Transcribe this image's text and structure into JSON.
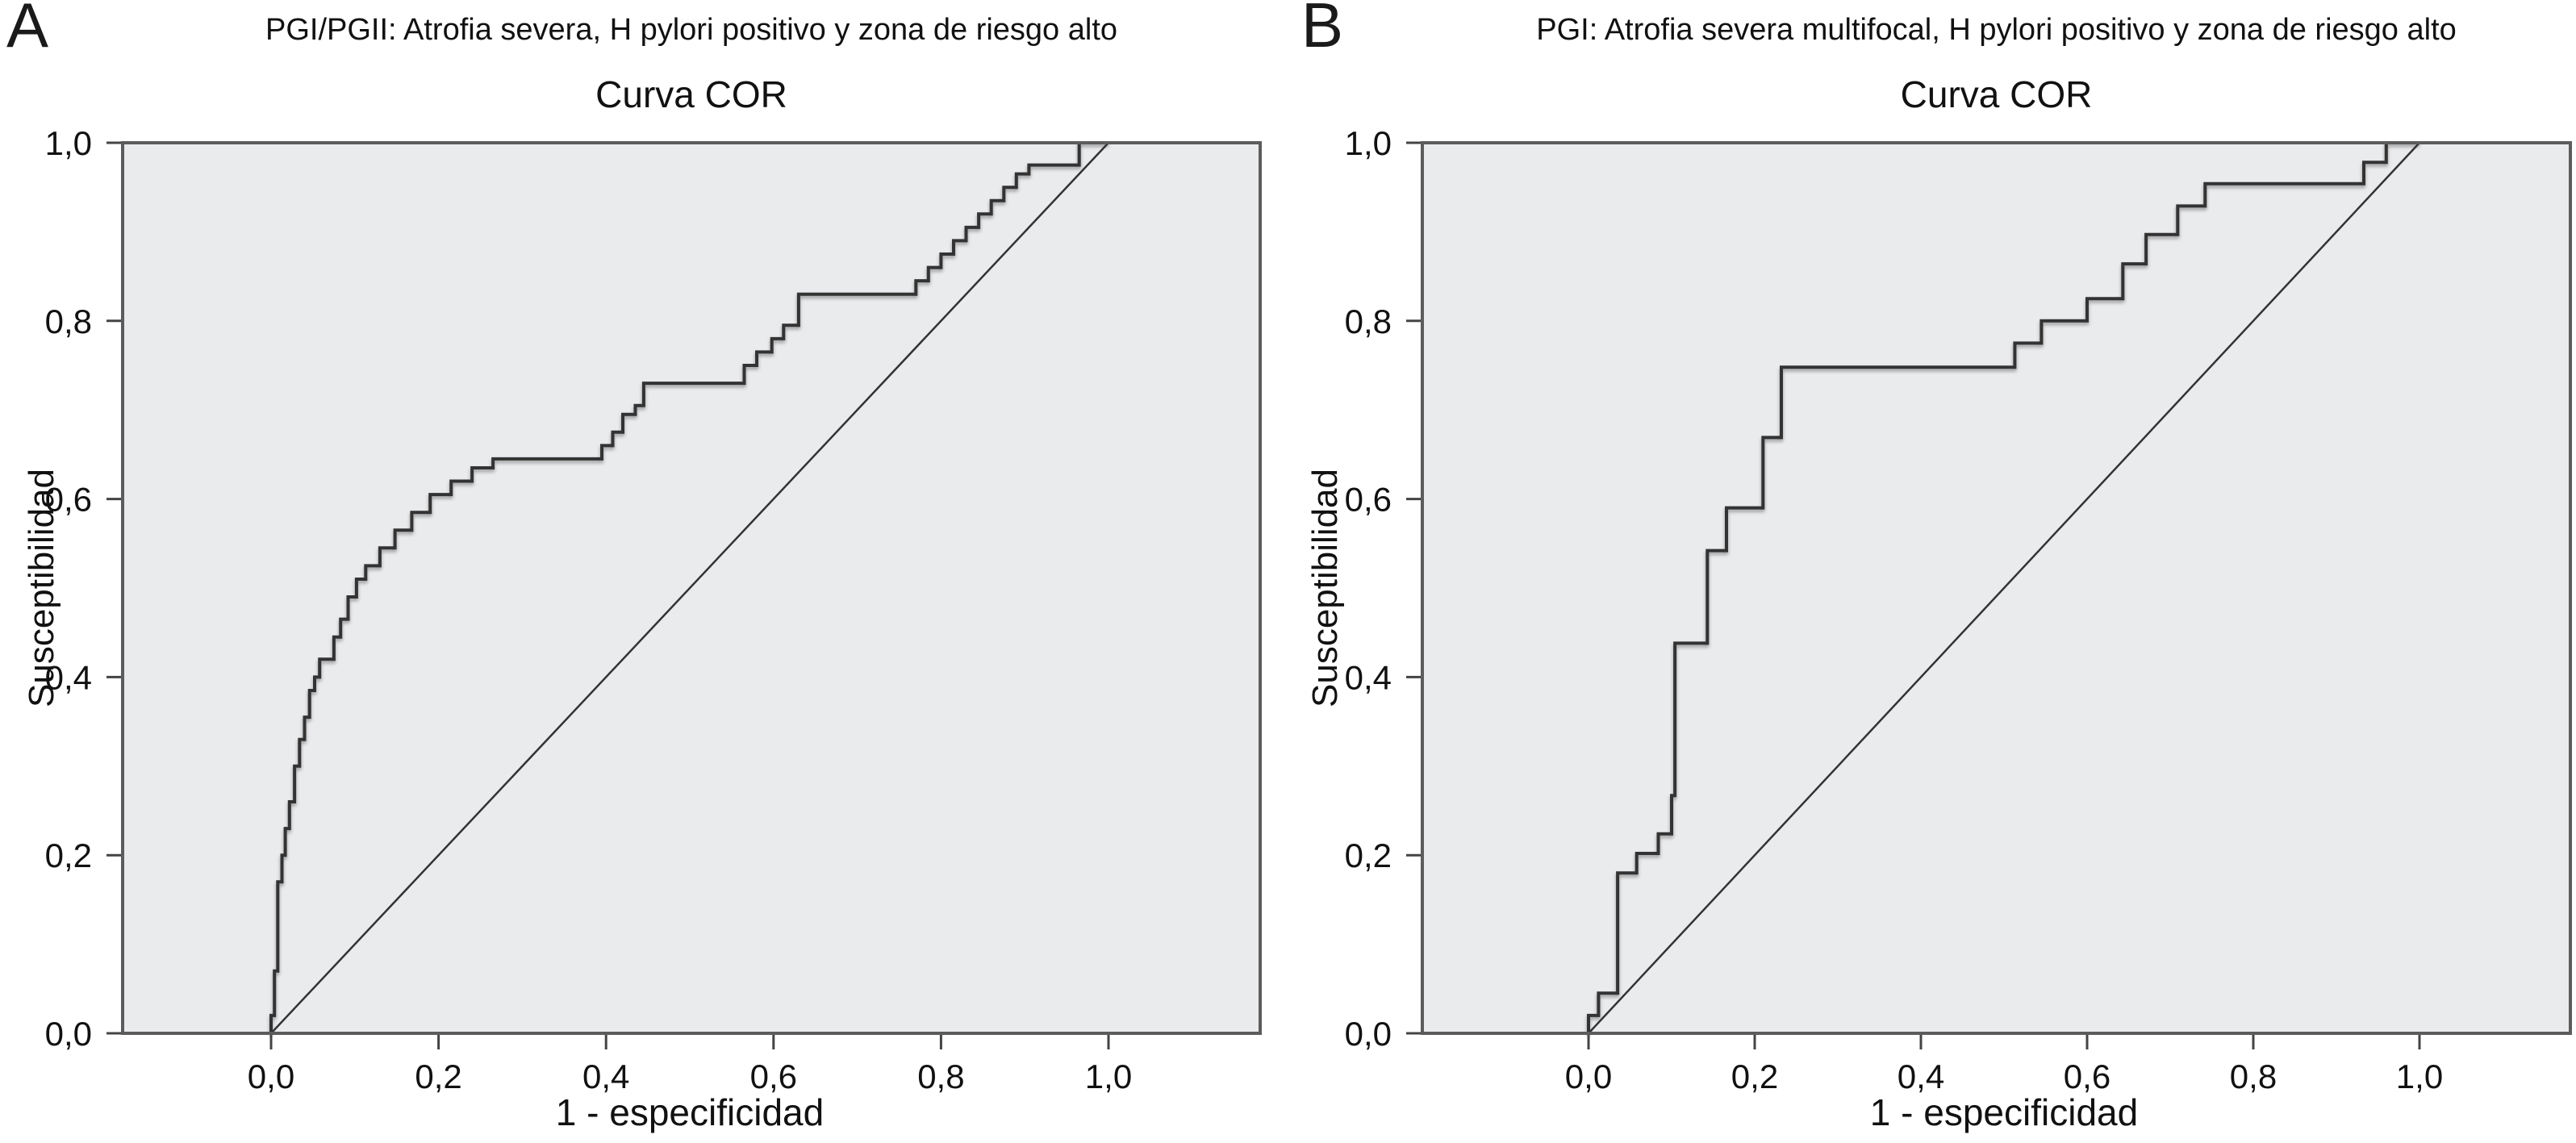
{
  "figure": {
    "background": "#ffffff",
    "style": {
      "plot_bg": "#eaebed",
      "frame_color": "#5c5c5c",
      "curve_color": "#333333",
      "diagonal_color": "#333333",
      "text_color": "#111111"
    }
  },
  "chart_data": [
    {
      "type": "line",
      "panel_label": "A",
      "suptitle": "PGI/PGII: Atrofia severa, H pylori positivo y zona de riesgo alto",
      "title": "Curva COR",
      "xlabel": "1 - especificidad",
      "ylabel": "Susceptibilidad",
      "xlim": [
        -0.18,
        1.18
      ],
      "ylim": [
        0,
        1
      ],
      "grid": false,
      "legend": "none",
      "xticks": {
        "values": [
          0,
          0.2,
          0.4,
          0.6,
          0.8,
          1.0
        ],
        "labels": [
          "0,0",
          "0,2",
          "0,4",
          "0,6",
          "0,8",
          "1,0"
        ]
      },
      "yticks": {
        "values": [
          0,
          0.2,
          0.4,
          0.6,
          0.8,
          1.0
        ],
        "labels": [
          "0,0",
          "0,2",
          "0,4",
          "0,6",
          "0,8",
          "1,0"
        ]
      },
      "series": [
        {
          "name": "roc_curve",
          "points": [
            [
              0,
              0
            ],
            [
              0,
              0.02
            ],
            [
              0.004,
              0.02
            ],
            [
              0.004,
              0.07
            ],
            [
              0.008,
              0.07
            ],
            [
              0.008,
              0.17
            ],
            [
              0.013,
              0.17
            ],
            [
              0.013,
              0.2
            ],
            [
              0.017,
              0.2
            ],
            [
              0.017,
              0.23
            ],
            [
              0.022,
              0.23
            ],
            [
              0.022,
              0.26
            ],
            [
              0.028,
              0.26
            ],
            [
              0.028,
              0.3
            ],
            [
              0.034,
              0.3
            ],
            [
              0.034,
              0.33
            ],
            [
              0.04,
              0.33
            ],
            [
              0.04,
              0.355
            ],
            [
              0.046,
              0.355
            ],
            [
              0.046,
              0.385
            ],
            [
              0.052,
              0.385
            ],
            [
              0.052,
              0.4
            ],
            [
              0.058,
              0.4
            ],
            [
              0.058,
              0.42
            ],
            [
              0.075,
              0.42
            ],
            [
              0.075,
              0.445
            ],
            [
              0.083,
              0.445
            ],
            [
              0.083,
              0.465
            ],
            [
              0.092,
              0.465
            ],
            [
              0.092,
              0.49
            ],
            [
              0.102,
              0.49
            ],
            [
              0.102,
              0.51
            ],
            [
              0.113,
              0.51
            ],
            [
              0.113,
              0.525
            ],
            [
              0.13,
              0.525
            ],
            [
              0.13,
              0.545
            ],
            [
              0.148,
              0.545
            ],
            [
              0.148,
              0.565
            ],
            [
              0.168,
              0.565
            ],
            [
              0.168,
              0.585
            ],
            [
              0.19,
              0.585
            ],
            [
              0.19,
              0.605
            ],
            [
              0.215,
              0.605
            ],
            [
              0.215,
              0.62
            ],
            [
              0.24,
              0.62
            ],
            [
              0.24,
              0.635
            ],
            [
              0.265,
              0.635
            ],
            [
              0.265,
              0.645
            ],
            [
              0.395,
              0.645
            ],
            [
              0.395,
              0.66
            ],
            [
              0.408,
              0.66
            ],
            [
              0.408,
              0.675
            ],
            [
              0.42,
              0.675
            ],
            [
              0.42,
              0.695
            ],
            [
              0.435,
              0.695
            ],
            [
              0.435,
              0.705
            ],
            [
              0.445,
              0.705
            ],
            [
              0.445,
              0.73
            ],
            [
              0.565,
              0.73
            ],
            [
              0.565,
              0.75
            ],
            [
              0.58,
              0.75
            ],
            [
              0.58,
              0.765
            ],
            [
              0.598,
              0.765
            ],
            [
              0.598,
              0.78
            ],
            [
              0.612,
              0.78
            ],
            [
              0.612,
              0.795
            ],
            [
              0.63,
              0.795
            ],
            [
              0.63,
              0.83
            ],
            [
              0.77,
              0.83
            ],
            [
              0.77,
              0.845
            ],
            [
              0.785,
              0.845
            ],
            [
              0.785,
              0.86
            ],
            [
              0.8,
              0.86
            ],
            [
              0.8,
              0.875
            ],
            [
              0.815,
              0.875
            ],
            [
              0.815,
              0.89
            ],
            [
              0.83,
              0.89
            ],
            [
              0.83,
              0.905
            ],
            [
              0.845,
              0.905
            ],
            [
              0.845,
              0.92
            ],
            [
              0.86,
              0.92
            ],
            [
              0.86,
              0.935
            ],
            [
              0.875,
              0.935
            ],
            [
              0.875,
              0.95
            ],
            [
              0.89,
              0.95
            ],
            [
              0.89,
              0.965
            ],
            [
              0.905,
              0.965
            ],
            [
              0.905,
              0.975
            ],
            [
              0.965,
              0.975
            ],
            [
              0.965,
              1
            ],
            [
              1,
              1
            ]
          ]
        },
        {
          "name": "reference_diagonal",
          "points": [
            [
              0,
              0
            ],
            [
              1,
              1
            ]
          ]
        }
      ]
    },
    {
      "type": "line",
      "panel_label": "B",
      "suptitle": "PGI: Atrofia severa multifocal, H pylori positivo y zona de riesgo alto",
      "title": "Curva COR",
      "xlabel": "1 - especificidad",
      "ylabel": "Susceptibilidad",
      "xlim": [
        -0.2,
        1.18
      ],
      "ylim": [
        0,
        1
      ],
      "grid": false,
      "legend": "none",
      "xticks": {
        "values": [
          0,
          0.2,
          0.4,
          0.6,
          0.8,
          1.0
        ],
        "labels": [
          "0,0",
          "0,2",
          "0,4",
          "0,6",
          "0,8",
          "1,0"
        ]
      },
      "yticks": {
        "values": [
          0,
          0.2,
          0.4,
          0.6,
          0.8,
          1.0
        ],
        "labels": [
          "0,0",
          "0,2",
          "0,4",
          "0,6",
          "0,8",
          "1,0"
        ]
      },
      "series": [
        {
          "name": "roc_curve",
          "points": [
            [
              0,
              0
            ],
            [
              0,
              0.02
            ],
            [
              0.012,
              0.02
            ],
            [
              0.012,
              0.045
            ],
            [
              0.035,
              0.045
            ],
            [
              0.035,
              0.18
            ],
            [
              0.058,
              0.18
            ],
            [
              0.058,
              0.202
            ],
            [
              0.084,
              0.202
            ],
            [
              0.084,
              0.224
            ],
            [
              0.1,
              0.224
            ],
            [
              0.1,
              0.267
            ],
            [
              0.104,
              0.267
            ],
            [
              0.104,
              0.438
            ],
            [
              0.143,
              0.438
            ],
            [
              0.143,
              0.542
            ],
            [
              0.166,
              0.542
            ],
            [
              0.166,
              0.59
            ],
            [
              0.21,
              0.59
            ],
            [
              0.21,
              0.669
            ],
            [
              0.232,
              0.669
            ],
            [
              0.232,
              0.748
            ],
            [
              0.513,
              0.748
            ],
            [
              0.513,
              0.775
            ],
            [
              0.545,
              0.775
            ],
            [
              0.545,
              0.8
            ],
            [
              0.6,
              0.8
            ],
            [
              0.6,
              0.825
            ],
            [
              0.643,
              0.825
            ],
            [
              0.643,
              0.864
            ],
            [
              0.671,
              0.864
            ],
            [
              0.671,
              0.897
            ],
            [
              0.709,
              0.897
            ],
            [
              0.709,
              0.929
            ],
            [
              0.742,
              0.929
            ],
            [
              0.742,
              0.954
            ],
            [
              0.933,
              0.954
            ],
            [
              0.933,
              0.978
            ],
            [
              0.96,
              0.978
            ],
            [
              0.96,
              1
            ],
            [
              1,
              1
            ]
          ]
        },
        {
          "name": "reference_diagonal",
          "points": [
            [
              0,
              0
            ],
            [
              1,
              1
            ]
          ]
        }
      ]
    }
  ]
}
